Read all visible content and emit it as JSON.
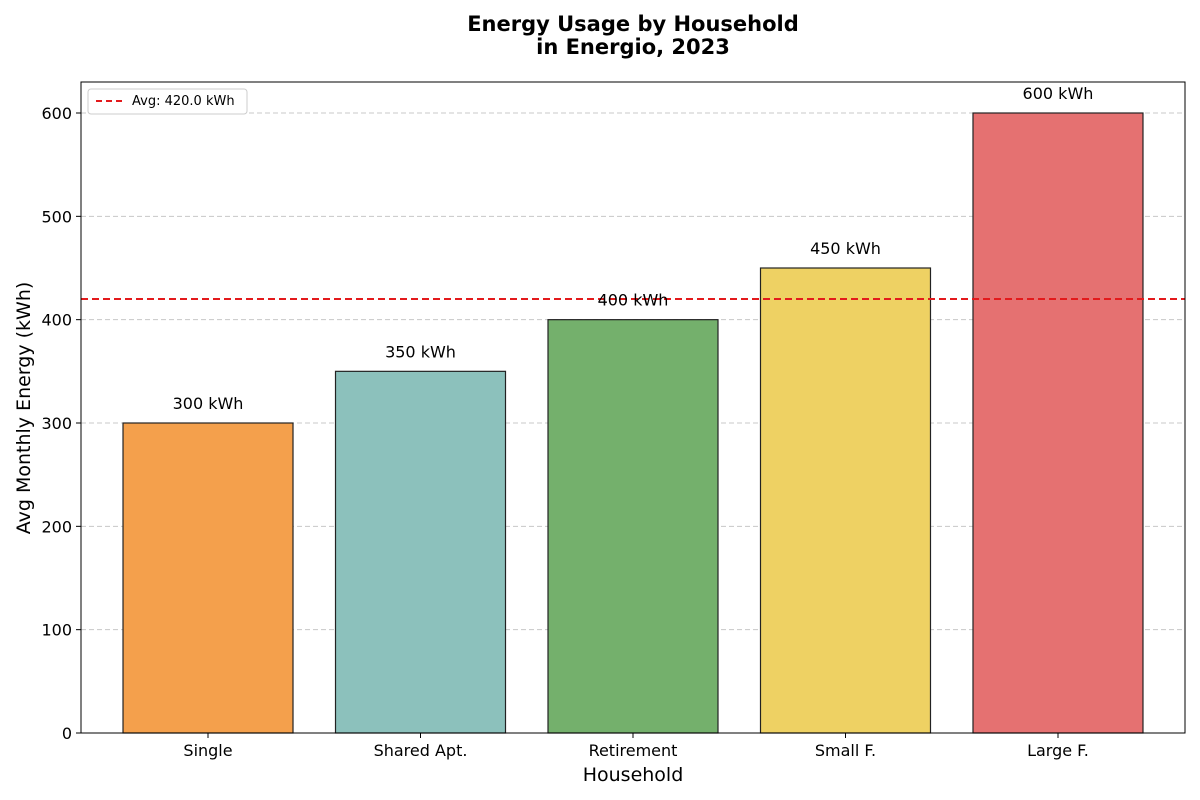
{
  "chart_data": {
    "type": "bar",
    "title_lines": [
      "Energy Usage by Household",
      "in Energio, 2023"
    ],
    "xlabel": "Household",
    "ylabel": "Avg Monthly Energy (kWh)",
    "categories": [
      "Single",
      "Shared Apt.",
      "Retirement",
      "Small F.",
      "Large F."
    ],
    "values": [
      300,
      350,
      400,
      450,
      600
    ],
    "data_labels": [
      "300 kWh",
      "350 kWh",
      "400 kWh",
      "450 kWh",
      "600 kWh"
    ],
    "colors": [
      "#F4A04C",
      "#8CC1BC",
      "#74B06C",
      "#EED163",
      "#E57171"
    ],
    "edge_color": "#222222",
    "ylim": [
      0,
      630
    ],
    "yticks": [
      0,
      100,
      200,
      300,
      400,
      500,
      600
    ],
    "grid": true,
    "average": {
      "value": 420.0,
      "label": "Avg: 420.0 kWh",
      "color": "#E31A1C",
      "style": "dashed"
    },
    "legend_position": "upper-left"
  }
}
